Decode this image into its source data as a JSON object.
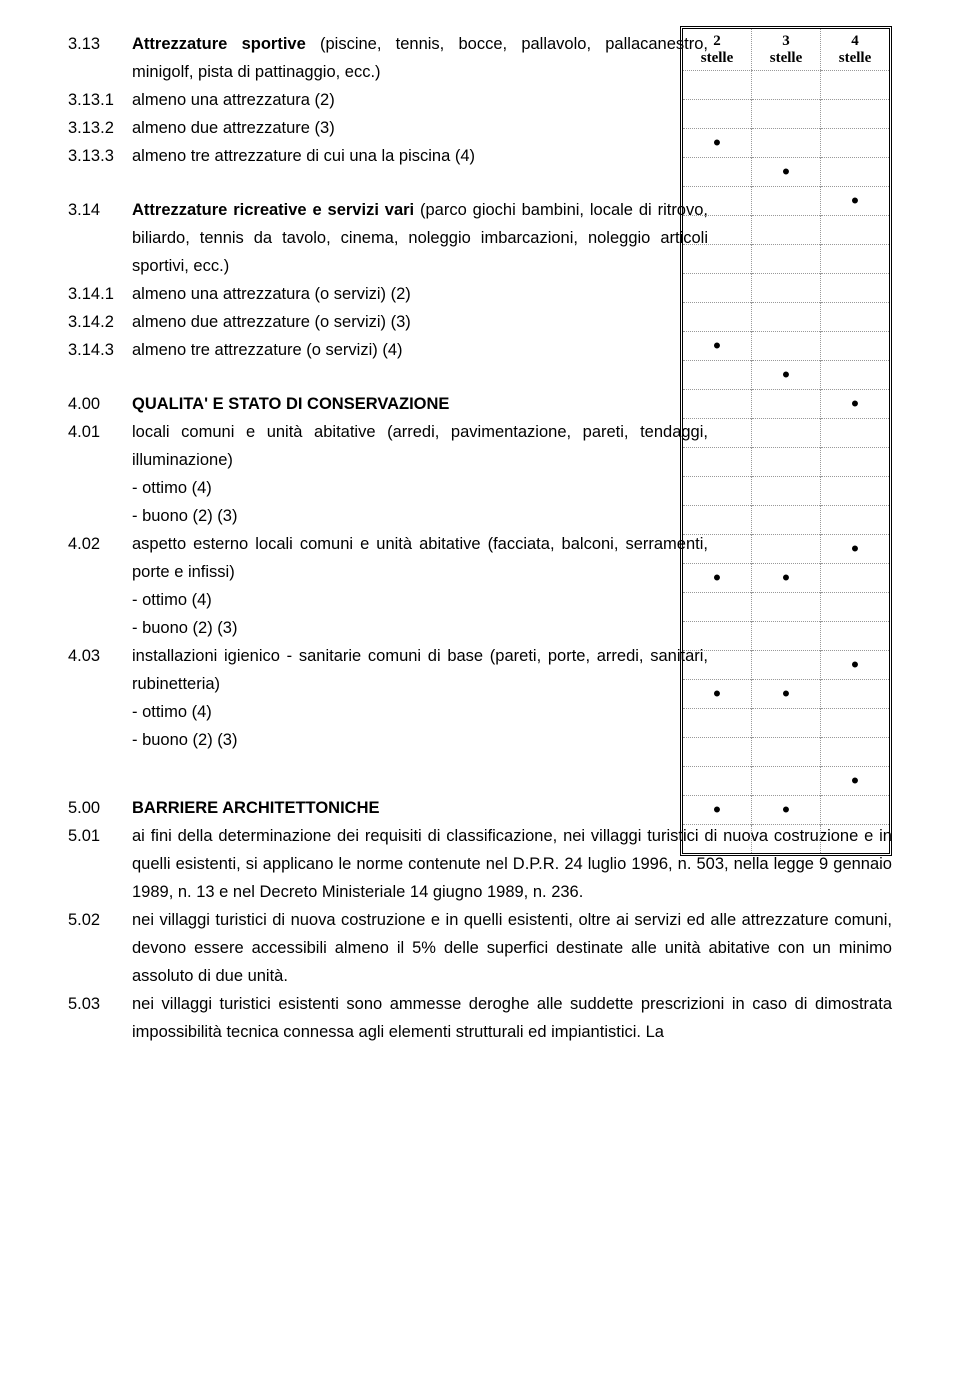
{
  "header": {
    "col2": "2\nstelle",
    "col3": "3\nstelle",
    "col4": "4\nstelle"
  },
  "marks": [
    [
      null,
      null,
      null
    ],
    [
      null,
      null,
      null
    ],
    [
      "•",
      null,
      null
    ],
    [
      null,
      "•",
      null
    ],
    [
      null,
      null,
      "•"
    ],
    [
      null,
      null,
      null
    ],
    [
      null,
      null,
      null
    ],
    [
      null,
      null,
      null
    ],
    [
      null,
      null,
      null
    ],
    [
      "•",
      null,
      null
    ],
    [
      null,
      "•",
      null
    ],
    [
      null,
      null,
      "•"
    ],
    [
      null,
      null,
      null
    ],
    [
      null,
      null,
      null
    ],
    [
      null,
      null,
      null
    ],
    [
      null,
      null,
      null
    ],
    [
      null,
      null,
      "•"
    ],
    [
      "•",
      "•",
      null
    ],
    [
      null,
      null,
      null
    ],
    [
      null,
      null,
      null
    ],
    [
      null,
      null,
      "•"
    ],
    [
      "•",
      "•",
      null
    ],
    [
      null,
      null,
      null
    ],
    [
      null,
      null,
      null
    ],
    [
      null,
      null,
      "•"
    ],
    [
      "•",
      "•",
      null
    ],
    [
      null,
      null,
      null
    ]
  ],
  "s313_num": "3.13",
  "s313_txt_a": "Attrezzature sportive",
  "s313_txt_b": " (piscine, tennis, bocce, pallavolo, pallacanestro, minigolf, pista di pattinaggio, ecc.)",
  "s3131_num": "3.13.1",
  "s3131_txt": "almeno una attrezzatura  (2)",
  "s3132_num": "3.13.2",
  "s3132_txt": "almeno due attrezzature  (3)",
  "s3133_num": "3.13.3",
  "s3133_txt": "almeno tre attrezzature di cui una la piscina  (4)",
  "s314_num": "3.14",
  "s314_txt_a": "Attrezzature ricreative e servizi vari",
  "s314_txt_b": " (parco giochi bambini, locale di ritrovo, biliardo, tennis da tavolo, cinema, noleggio imbarcazioni, noleggio articoli sportivi, ecc.)",
  "s3141_num": "3.14.1",
  "s3141_txt": "almeno una attrezzatura (o servizi)  (2)",
  "s3142_num": "3.14.2",
  "s3142_txt": "almeno due attrezzature (o servizi)  (3)",
  "s3143_num": "3.14.3",
  "s3143_txt": "almeno tre attrezzature (o servizi)  (4)",
  "s400_num": "4.00",
  "s400_txt": "QUALITA' E STATO DI CONSERVAZIONE",
  "s401_num": "4.01",
  "s401_txt": "locali comuni e unità abitative (arredi, pavimentazione, pareti, tendaggi, illuminazione)",
  "ottimo": "-  ottimo  (4)",
  "buono": "-  buono  (2) (3)",
  "s402_num": "4.02",
  "s402_txt": "aspetto esterno locali comuni e unità abitative (facciata, balconi, serramenti, porte e infissi)",
  "s403_num": "4.03",
  "s403_txt": "installazioni igienico - sanitarie comuni di base (pareti, porte, arredi, sanitari, rubinetteria)",
  "s500_num": "5.00",
  "s500_txt": "BARRIERE ARCHITETTONICHE",
  "s501_num": "5.01",
  "s501_txt": "ai fini della determinazione dei requisiti di classificazione, nei villaggi turistici di nuova costruzione e in quelli esistenti, si applicano le norme contenute nel D.P.R. 24 luglio 1996, n. 503, nella legge 9 gennaio 1989, n. 13 e nel Decreto Ministeriale 14 giugno 1989, n. 236.",
  "s502_num": "5.02",
  "s502_txt": "nei villaggi turistici di nuova costruzione e in quelli esistenti, oltre ai servizi ed alle attrezzature comuni, devono essere accessibili almeno il 5% delle superfici destinate alle unità abitative con un minimo assoluto di due unità.",
  "s503_num": "5.03",
  "s503_txt": "nei villaggi turistici esistenti sono ammesse deroghe alle suddette prescrizioni in caso di dimostrata impossibilità tecnica connessa agli elementi strutturali ed impiantistici. La"
}
